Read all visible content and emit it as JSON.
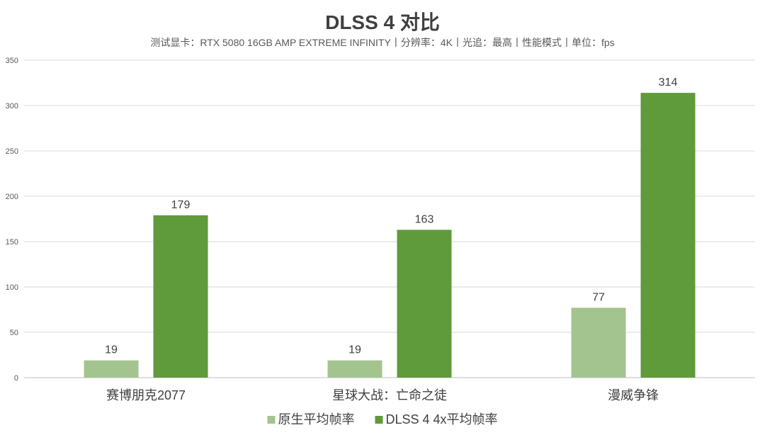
{
  "chart_data": {
    "type": "bar",
    "title": "DLSS 4 对比",
    "subtitle": "测试显卡：RTX 5080 16GB AMP EXTREME INFINITY丨分辨率：4K丨光追：最高丨性能模式丨单位：fps",
    "categories": [
      "赛博朋克2077",
      "星球大战：亡命之徒",
      "漫威争锋"
    ],
    "series": [
      {
        "name": "原生平均帧率",
        "values": [
          19,
          19,
          77
        ],
        "color": "#a3c48f"
      },
      {
        "name": "DLSS 4 4x平均帧率",
        "values": [
          179,
          163,
          314
        ],
        "color": "#5f9a3b"
      }
    ],
    "ylim": [
      0,
      350
    ],
    "yticks": [
      0,
      50,
      100,
      150,
      200,
      250,
      300,
      350
    ],
    "grid": true,
    "legend": "bottom"
  }
}
